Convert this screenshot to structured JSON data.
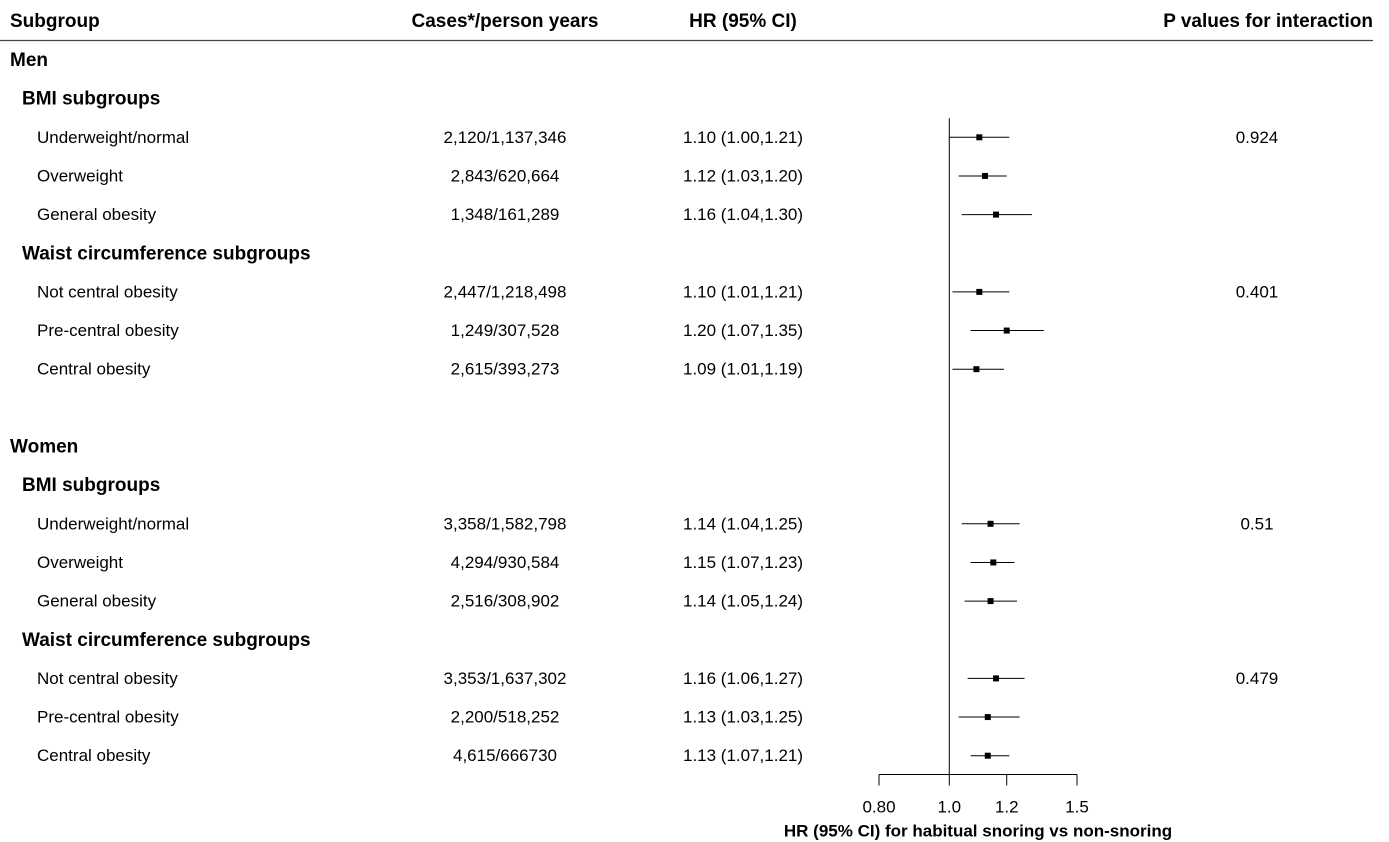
{
  "chart_data": {
    "type": "forest",
    "headers": {
      "subgroup": "Subgroup",
      "cases": "Cases*/person years",
      "hr": "HR (95% CI)",
      "p": "P values for interaction"
    },
    "x_label": "HR (95% CI) for habitual snoring vs non-snoring",
    "log_scale": true,
    "reference": 1,
    "xlim": [
      0.8,
      1.5
    ],
    "xticks": [
      {
        "value": 0.8,
        "label": "0.80"
      },
      {
        "value": 1,
        "label": "1.0"
      },
      1.2,
      1.5
    ],
    "color": "#000000",
    "sections": [
      {
        "name": "Men",
        "groups": [
          {
            "name": "BMI subgroups",
            "p_value": 0.924,
            "rows": [
              {
                "label": "Underweight/normal",
                "cases": "2,120/1,137,346",
                "hr": 1.1,
                "lower": 1.0,
                "upper": 1.21,
                "value_label": "1.10 (1.00,1.21)"
              },
              {
                "label": "Overweight",
                "cases": "2,843/620,664",
                "hr": 1.12,
                "lower": 1.03,
                "upper": 1.2,
                "value_label": "1.12 (1.03,1.20)"
              },
              {
                "label": "General obesity",
                "cases": "1,348/161,289",
                "hr": 1.16,
                "lower": 1.04,
                "upper": 1.3,
                "value_label": "1.16 (1.04,1.30)"
              }
            ]
          },
          {
            "name": "Waist circumference subgroups",
            "p_value": 0.401,
            "rows": [
              {
                "label": "Not central obesity",
                "cases": "2,447/1,218,498",
                "hr": 1.1,
                "lower": 1.01,
                "upper": 1.21,
                "value_label": "1.10 (1.01,1.21)"
              },
              {
                "label": "Pre-central obesity",
                "cases": "1,249/307,528",
                "hr": 1.2,
                "lower": 1.07,
                "upper": 1.35,
                "value_label": "1.20 (1.07,1.35)"
              },
              {
                "label": "Central obesity",
                "cases": "2,615/393,273",
                "hr": 1.09,
                "lower": 1.01,
                "upper": 1.19,
                "value_label": "1.09 (1.01,1.19)"
              }
            ]
          }
        ]
      },
      {
        "name": "Women",
        "groups": [
          {
            "name": "BMI subgroups",
            "p_value": 0.51,
            "rows": [
              {
                "label": "Underweight/normal",
                "cases": "3,358/1,582,798",
                "hr": 1.14,
                "lower": 1.04,
                "upper": 1.25,
                "value_label": "1.14 (1.04,1.25)"
              },
              {
                "label": "Overweight",
                "cases": "4,294/930,584",
                "hr": 1.15,
                "lower": 1.07,
                "upper": 1.23,
                "value_label": "1.15 (1.07,1.23)"
              },
              {
                "label": "General obesity",
                "cases": "2,516/308,902",
                "hr": 1.14,
                "lower": 1.05,
                "upper": 1.24,
                "value_label": "1.14 (1.05,1.24)"
              }
            ]
          },
          {
            "name": "Waist circumference subgroups",
            "p_value": 0.479,
            "rows": [
              {
                "label": "Not central obesity",
                "cases": "3,353/1,637,302",
                "hr": 1.16,
                "lower": 1.06,
                "upper": 1.27,
                "value_label": "1.16 (1.06,1.27)"
              },
              {
                "label": "Pre-central obesity",
                "cases": "2,200/518,252",
                "hr": 1.13,
                "lower": 1.03,
                "upper": 1.25,
                "value_label": "1.13 (1.03,1.25)"
              },
              {
                "label": "Central obesity",
                "cases": "4,615/666730",
                "hr": 1.13,
                "lower": 1.07,
                "upper": 1.21,
                "value_label": "1.13 (1.07,1.21)"
              }
            ]
          }
        ]
      }
    ]
  }
}
